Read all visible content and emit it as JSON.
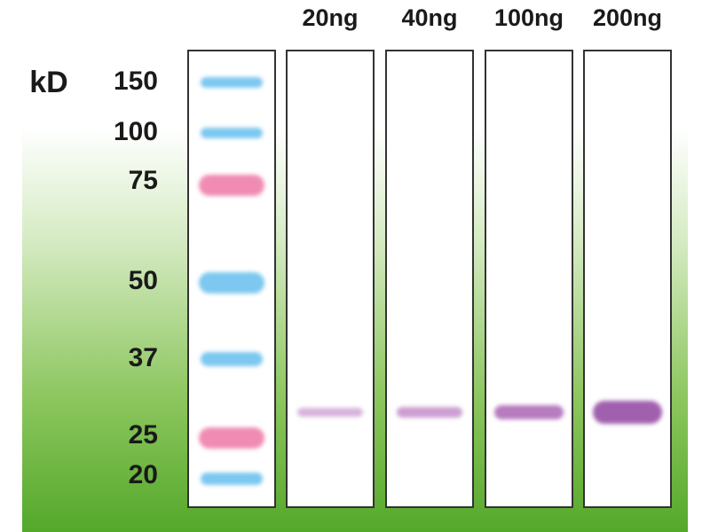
{
  "unit_label": "kD",
  "markers": [
    "150",
    "100",
    "75",
    "50",
    "37",
    "25",
    "20"
  ],
  "lanes": [
    "20ng",
    "40ng",
    "100ng",
    "200ng"
  ]
}
